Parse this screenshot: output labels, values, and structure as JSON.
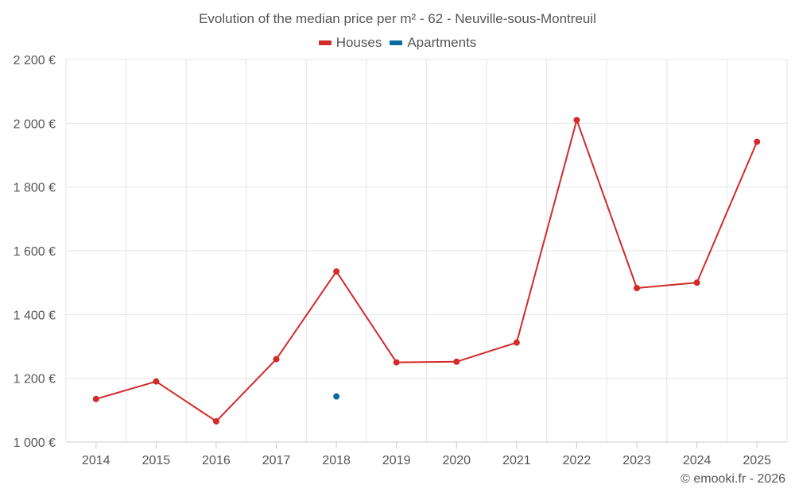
{
  "chart_data": {
    "type": "line",
    "title": "Evolution of the median price per m² - 62 - Neuville-sous-Montreuil",
    "xlabel": "",
    "ylabel": "",
    "categories": [
      "2014",
      "2015",
      "2016",
      "2017",
      "2018",
      "2019",
      "2020",
      "2021",
      "2022",
      "2023",
      "2024",
      "2025"
    ],
    "ylim": [
      1000,
      2200
    ],
    "y_ticks": [
      1000,
      1200,
      1400,
      1600,
      1800,
      2000,
      2200
    ],
    "y_tick_labels": [
      "1 000 €",
      "1 200 €",
      "1 400 €",
      "1 600 €",
      "1 800 €",
      "2 000 €",
      "2 200 €"
    ],
    "grid": true,
    "legend_position": "top-center",
    "series": [
      {
        "name": "Houses",
        "color": "#d32a2a",
        "values": [
          1135,
          1190,
          1065,
          1260,
          1535,
          1250,
          1252,
          1312,
          2010,
          1483,
          1500,
          1942
        ]
      },
      {
        "name": "Apartments",
        "color": "#0a6aa1",
        "values": [
          null,
          null,
          null,
          null,
          1143,
          null,
          null,
          null,
          null,
          null,
          null,
          null
        ]
      }
    ]
  },
  "credits": "© emooki.fr - 2026"
}
